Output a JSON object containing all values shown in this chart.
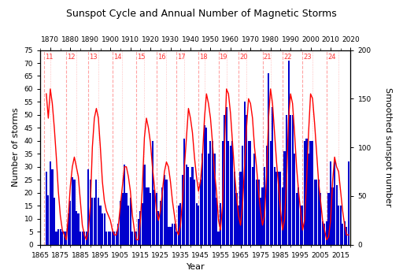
{
  "title": "Sunspot Cycle and Annual Number of Magnetic Storms",
  "xlabel": "Year",
  "ylabel_left": "Number of storms",
  "ylabel_right": "Smoothed sunspot number",
  "bar_color": "#0000CD",
  "line_color": "#FF0000",
  "xlim": [
    1865,
    2020
  ],
  "ylim_left": [
    0,
    75
  ],
  "ylim_right": [
    0,
    200
  ],
  "yticks_left": [
    0,
    5,
    10,
    15,
    20,
    25,
    30,
    35,
    40,
    45,
    50,
    55,
    60,
    65,
    70,
    75
  ],
  "yticks_right": [
    0,
    50,
    100,
    150,
    200
  ],
  "top_xticks": [
    1870,
    1880,
    1890,
    1900,
    1910,
    1920,
    1930,
    1940,
    1950,
    1960,
    1970,
    1980,
    1990,
    2000,
    2010,
    2020
  ],
  "bottom_xticks": [
    1865,
    1875,
    1885,
    1895,
    1905,
    1915,
    1925,
    1935,
    1945,
    1955,
    1965,
    1975,
    1985,
    1995,
    2005,
    2015
  ],
  "solar_cycle_starts": [
    1867,
    1878,
    1889,
    1901,
    1913,
    1923,
    1933,
    1944,
    1954,
    1964,
    1976,
    1986,
    1996,
    2008
  ],
  "solar_cycle_numbers": [
    "11",
    "12",
    "13",
    "14",
    "15",
    "16",
    "17",
    "18",
    "19",
    "20",
    "21",
    "22",
    "23",
    "24"
  ],
  "solar_maxima": [
    1870,
    1883,
    1894,
    1906,
    1917,
    1928,
    1937,
    1947,
    1958,
    1968,
    1980,
    1989,
    2001,
    2014
  ],
  "storm_data_years": [
    1868,
    1869,
    1870,
    1871,
    1872,
    1873,
    1874,
    1875,
    1876,
    1877,
    1878,
    1879,
    1880,
    1881,
    1882,
    1883,
    1884,
    1885,
    1886,
    1887,
    1888,
    1889,
    1890,
    1891,
    1892,
    1893,
    1894,
    1895,
    1896,
    1897,
    1898,
    1899,
    1900,
    1901,
    1902,
    1903,
    1904,
    1905,
    1906,
    1907,
    1908,
    1909,
    1910,
    1911,
    1912,
    1913,
    1914,
    1915,
    1916,
    1917,
    1918,
    1919,
    1920,
    1921,
    1922,
    1923,
    1924,
    1925,
    1926,
    1927,
    1928,
    1929,
    1930,
    1931,
    1932,
    1933,
    1934,
    1935,
    1936,
    1937,
    1938,
    1939,
    1940,
    1941,
    1942,
    1943,
    1944,
    1945,
    1946,
    1947,
    1948,
    1949,
    1950,
    1951,
    1952,
    1953,
    1954,
    1955,
    1956,
    1957,
    1958,
    1959,
    1960,
    1961,
    1962,
    1963,
    1964,
    1965,
    1966,
    1967,
    1968,
    1969,
    1970,
    1971,
    1972,
    1973,
    1974,
    1975,
    1976,
    1977,
    1978,
    1979,
    1980,
    1981,
    1982,
    1983,
    1984,
    1985,
    1986,
    1987,
    1988,
    1989,
    1990,
    1991,
    1992,
    1993,
    1994,
    1995,
    1996,
    1997,
    1998,
    1999,
    2000,
    2001,
    2002,
    2003,
    2004,
    2005,
    2006,
    2007,
    2008,
    2009,
    2010,
    2011,
    2012,
    2013,
    2014,
    2015,
    2016,
    2017,
    2018,
    2019
  ],
  "storm_data_counts": [
    28,
    19,
    32,
    29,
    18,
    5,
    6,
    6,
    5,
    5,
    5,
    12,
    17,
    26,
    25,
    13,
    12,
    5,
    5,
    5,
    5,
    29,
    25,
    18,
    18,
    25,
    18,
    15,
    12,
    12,
    5,
    5,
    5,
    5,
    5,
    5,
    8,
    17,
    20,
    31,
    20,
    15,
    18,
    5,
    5,
    5,
    10,
    13,
    16,
    31,
    22,
    22,
    20,
    40,
    21,
    20,
    13,
    17,
    22,
    27,
    25,
    7,
    7,
    8,
    8,
    5,
    15,
    16,
    27,
    41,
    31,
    30,
    26,
    30,
    25,
    16,
    15,
    25,
    35,
    46,
    45,
    35,
    40,
    40,
    35,
    18,
    5,
    16,
    40,
    50,
    53,
    40,
    38,
    40,
    28,
    20,
    15,
    28,
    38,
    55,
    50,
    40,
    40,
    30,
    35,
    25,
    25,
    18,
    22,
    30,
    38,
    66,
    40,
    53,
    30,
    28,
    28,
    28,
    22,
    36,
    50,
    71,
    50,
    50,
    35,
    20,
    22,
    15,
    15,
    40,
    41,
    35,
    40,
    40,
    25,
    25,
    25,
    20,
    9,
    8,
    9,
    20,
    32,
    22,
    32,
    23,
    15,
    15,
    8,
    9,
    7,
    32
  ],
  "sunspot_years": [
    1868,
    1869,
    1870,
    1871,
    1872,
    1873,
    1874,
    1875,
    1876,
    1877,
    1878,
    1879,
    1880,
    1881,
    1882,
    1883,
    1884,
    1885,
    1886,
    1887,
    1888,
    1889,
    1890,
    1891,
    1892,
    1893,
    1894,
    1895,
    1896,
    1897,
    1898,
    1899,
    1900,
    1901,
    1902,
    1903,
    1904,
    1905,
    1906,
    1907,
    1908,
    1909,
    1910,
    1911,
    1912,
    1913,
    1914,
    1915,
    1916,
    1917,
    1918,
    1919,
    1920,
    1921,
    1922,
    1923,
    1924,
    1925,
    1926,
    1927,
    1928,
    1929,
    1930,
    1931,
    1932,
    1933,
    1934,
    1935,
    1936,
    1937,
    1938,
    1939,
    1940,
    1941,
    1942,
    1943,
    1944,
    1945,
    1946,
    1947,
    1948,
    1949,
    1950,
    1951,
    1952,
    1953,
    1954,
    1955,
    1956,
    1957,
    1958,
    1959,
    1960,
    1961,
    1962,
    1963,
    1964,
    1965,
    1966,
    1967,
    1968,
    1969,
    1970,
    1971,
    1972,
    1973,
    1974,
    1975,
    1976,
    1977,
    1978,
    1979,
    1980,
    1981,
    1982,
    1983,
    1984,
    1985,
    1986,
    1987,
    1988,
    1989,
    1990,
    1991,
    1992,
    1993,
    1994,
    1995,
    1996,
    1997,
    1998,
    1999,
    2000,
    2001,
    2002,
    2003,
    2004,
    2005,
    2006,
    2007,
    2008,
    2009,
    2010,
    2011,
    2012,
    2013,
    2014,
    2015,
    2016,
    2017,
    2018,
    2019
  ],
  "sunspot_values": [
    155,
    130,
    160,
    145,
    120,
    90,
    55,
    30,
    15,
    10,
    5,
    30,
    60,
    80,
    90,
    80,
    70,
    45,
    20,
    10,
    5,
    15,
    40,
    100,
    130,
    140,
    130,
    100,
    65,
    45,
    35,
    30,
    25,
    15,
    10,
    10,
    20,
    40,
    60,
    80,
    80,
    70,
    55,
    30,
    15,
    5,
    5,
    25,
    60,
    110,
    130,
    120,
    105,
    80,
    60,
    35,
    25,
    35,
    55,
    75,
    85,
    80,
    65,
    45,
    30,
    15,
    10,
    20,
    45,
    80,
    110,
    140,
    130,
    115,
    90,
    70,
    55,
    65,
    90,
    130,
    155,
    145,
    130,
    105,
    75,
    55,
    25,
    15,
    40,
    100,
    160,
    155,
    135,
    105,
    75,
    50,
    30,
    20,
    40,
    80,
    120,
    150,
    145,
    130,
    100,
    80,
    55,
    35,
    20,
    30,
    70,
    130,
    160,
    145,
    115,
    85,
    60,
    35,
    15,
    25,
    65,
    130,
    155,
    145,
    115,
    80,
    55,
    35,
    15,
    25,
    65,
    115,
    155,
    150,
    125,
    95,
    65,
    45,
    25,
    15,
    5,
    8,
    25,
    65,
    90,
    80,
    75,
    55,
    35,
    20,
    10,
    10
  ]
}
